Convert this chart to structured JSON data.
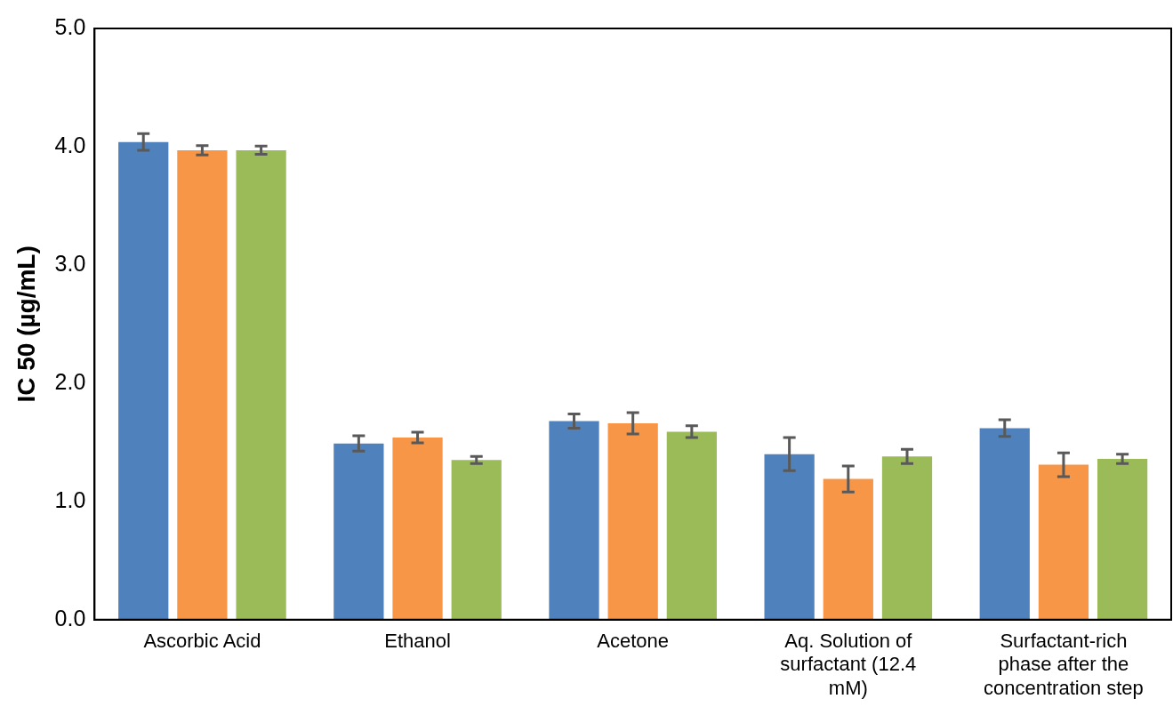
{
  "chart_data": {
    "type": "bar",
    "ylabel": "IC 50 (µg/mL)",
    "categories": [
      "Ascorbic Acid",
      "Ethanol",
      "Acetone",
      "Aq. Solution of surfactant (12.4 mM)",
      "Surfactant-rich phase after the concentration step"
    ],
    "series": [
      {
        "color": "#4f81bd",
        "values": [
          4.04,
          1.49,
          1.68,
          1.4,
          1.62
        ],
        "errors": [
          0.07,
          0.065,
          0.06,
          0.14,
          0.07
        ]
      },
      {
        "color": "#f79646",
        "values": [
          3.97,
          1.54,
          1.66,
          1.19,
          1.31
        ],
        "errors": [
          0.04,
          0.045,
          0.09,
          0.11,
          0.1
        ]
      },
      {
        "color": "#9bbb59",
        "values": [
          3.97,
          1.35,
          1.59,
          1.38,
          1.36
        ],
        "errors": [
          0.035,
          0.03,
          0.05,
          0.06,
          0.04
        ]
      }
    ],
    "ylim": [
      0,
      5
    ],
    "yticks": [
      {
        "value": 0,
        "label": "0.0"
      },
      {
        "value": 1,
        "label": "1.0"
      },
      {
        "value": 2,
        "label": "2.0"
      },
      {
        "value": 3,
        "label": "3.0"
      },
      {
        "value": 4,
        "label": "4.0"
      },
      {
        "value": 5,
        "label": "5.0"
      }
    ],
    "grid": false,
    "legend": false
  }
}
